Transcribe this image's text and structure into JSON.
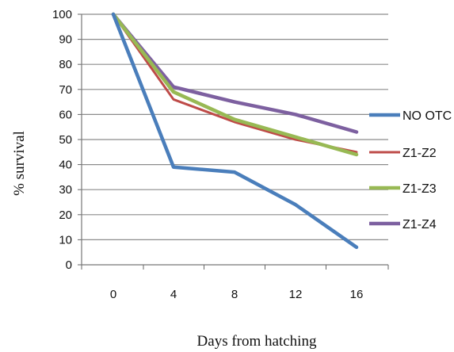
{
  "chart_data": {
    "type": "line",
    "x": [
      0,
      4,
      8,
      12,
      16
    ],
    "xticks": [
      "0",
      "4",
      "8",
      "12",
      "16"
    ],
    "yticks": [
      "0",
      "10",
      "20",
      "30",
      "40",
      "50",
      "60",
      "70",
      "80",
      "90",
      "100"
    ],
    "xlabel": "Days from hatching",
    "ylabel": "% survival",
    "ylim": [
      0,
      100
    ],
    "grid": true,
    "legend": "right",
    "series": [
      {
        "name": "NO OTC",
        "color": "#4a7ebb",
        "values": [
          100,
          39,
          37,
          24,
          7
        ]
      },
      {
        "name": "Z1-Z2",
        "color": "#be4b48",
        "values": [
          100,
          66,
          57,
          50,
          45
        ]
      },
      {
        "name": "Z1-Z3",
        "color": "#98b954",
        "values": [
          100,
          69,
          58,
          51,
          44
        ]
      },
      {
        "name": "Z1-Z4",
        "color": "#7d60a0",
        "values": [
          100,
          71,
          65,
          60,
          53
        ]
      }
    ]
  }
}
